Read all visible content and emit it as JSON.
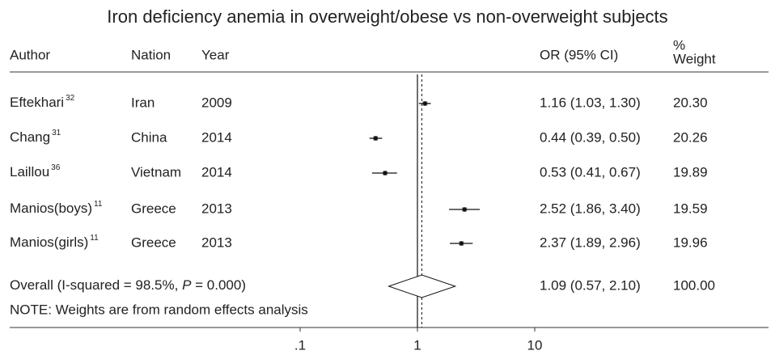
{
  "chart_data": {
    "type": "forest",
    "title": "Iron deficiency anemia in overweight/obese vs non-overweight subjects",
    "columns": {
      "author": "Author",
      "nation": "Nation",
      "year": "Year",
      "ci": "OR (95% CI)",
      "weight": [
        "%",
        "Weight"
      ]
    },
    "studies": [
      {
        "author": "Eftekhari",
        "ref": "32",
        "nation": "Iran",
        "year": 2009,
        "or": 1.16,
        "lo": 1.03,
        "hi": 1.3,
        "ci_label": "1.16 (1.03, 1.30)",
        "weight": 20.3,
        "weight_label": "20.30"
      },
      {
        "author": "Chang",
        "ref": "31",
        "nation": "China",
        "year": 2014,
        "or": 0.44,
        "lo": 0.39,
        "hi": 0.5,
        "ci_label": "0.44 (0.39, 0.50)",
        "weight": 20.26,
        "weight_label": "20.26"
      },
      {
        "author": "Laillou",
        "ref": "36",
        "nation": "Vietnam",
        "year": 2014,
        "or": 0.53,
        "lo": 0.41,
        "hi": 0.67,
        "ci_label": "0.53 (0.41, 0.67)",
        "weight": 19.89,
        "weight_label": "19.89"
      },
      {
        "author": "Manios(boys)",
        "ref": "11",
        "nation": "Greece",
        "year": 2013,
        "or": 2.52,
        "lo": 1.86,
        "hi": 3.4,
        "ci_label": "2.52 (1.86, 3.40)",
        "weight": 19.59,
        "weight_label": "19.59"
      },
      {
        "author": "Manios(girls)",
        "ref": "11",
        "nation": "Greece",
        "year": 2013,
        "or": 2.37,
        "lo": 1.89,
        "hi": 2.96,
        "ci_label": "2.37 (1.89, 2.96)",
        "weight": 19.96,
        "weight_label": "19.96"
      }
    ],
    "overall": {
      "label_parts": [
        "Overall  (I-squared = 98.5%, ",
        "P",
        " = 0.000)"
      ],
      "or": 1.09,
      "lo": 0.57,
      "hi": 2.1,
      "ci_label": "1.09 (0.57, 2.10)",
      "weight": 100,
      "weight_label": "100.00"
    },
    "note": "NOTE: Weights are from random effects analysis",
    "log_scale": true,
    "xlim": [
      0.1,
      10
    ],
    "xticks": [
      {
        "value": 0.1,
        "label": ".1"
      },
      1,
      10
    ]
  }
}
